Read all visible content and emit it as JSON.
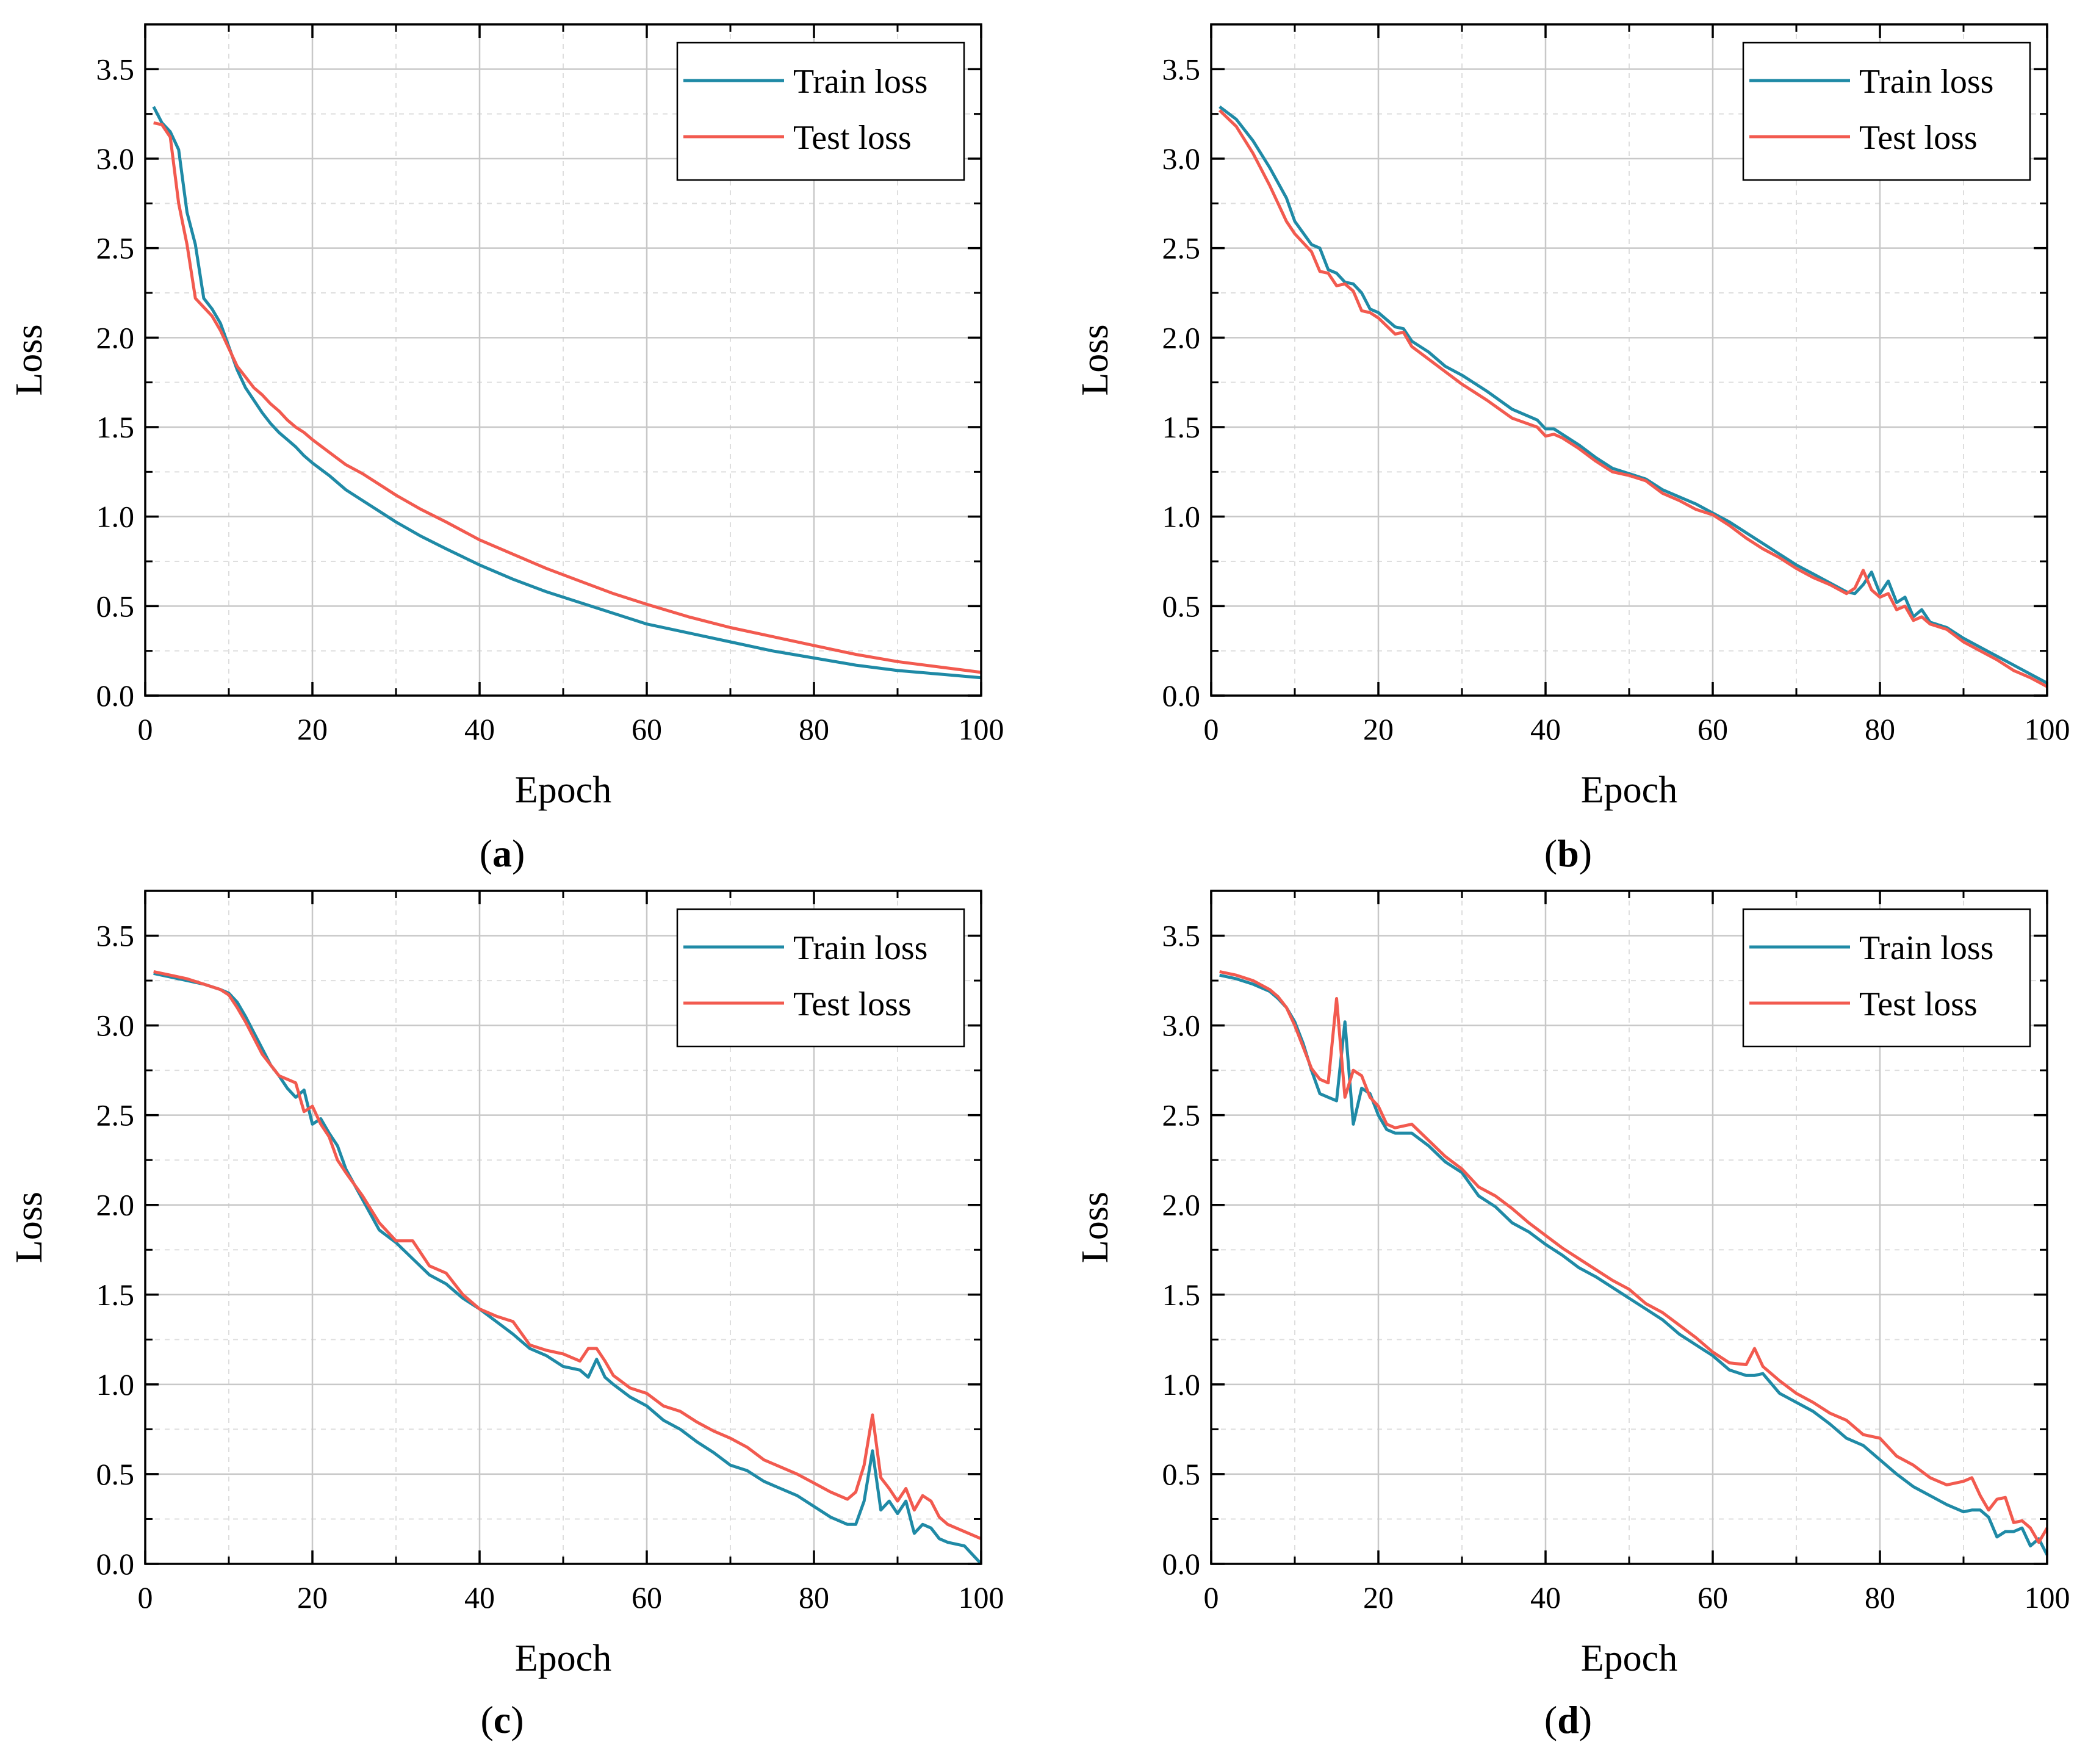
{
  "colors": {
    "train": "#1f8aa6",
    "test": "#f25a4f",
    "grid": "#c8c8c8",
    "frame": "#000000"
  },
  "chart_data": [
    {
      "type": "line",
      "caption_letter": "a",
      "xlabel": "Epoch",
      "ylabel": "Loss",
      "xlim": [
        0,
        100
      ],
      "ylim": [
        0,
        3.75
      ],
      "xticks": [
        0,
        20,
        40,
        60,
        80,
        100
      ],
      "yticks": [
        0.0,
        0.5,
        1.0,
        1.5,
        2.0,
        2.5,
        3.0,
        3.5
      ],
      "xtick_labels": [
        "0",
        "20",
        "40",
        "60",
        "80",
        "100"
      ],
      "ytick_labels": [
        "0.0",
        "0.5",
        "1.0",
        "1.5",
        "2.0",
        "2.5",
        "3.0",
        "3.5"
      ],
      "legend_position": "top-right",
      "series": [
        {
          "name": "Train loss",
          "color": "#1f8aa6",
          "x": [
            1,
            2,
            3,
            4,
            5,
            6,
            7,
            8,
            9,
            10,
            11,
            12,
            13,
            14,
            15,
            16,
            17,
            18,
            19,
            20,
            22,
            24,
            26,
            28,
            30,
            33,
            36,
            40,
            44,
            48,
            52,
            56,
            60,
            65,
            70,
            75,
            80,
            85,
            90,
            95,
            100
          ],
          "y": [
            3.29,
            3.2,
            3.15,
            3.05,
            2.7,
            2.52,
            2.22,
            2.16,
            2.08,
            1.95,
            1.82,
            1.72,
            1.65,
            1.58,
            1.52,
            1.47,
            1.43,
            1.39,
            1.34,
            1.3,
            1.23,
            1.15,
            1.09,
            1.03,
            0.97,
            0.89,
            0.82,
            0.73,
            0.65,
            0.58,
            0.52,
            0.46,
            0.4,
            0.35,
            0.3,
            0.25,
            0.21,
            0.17,
            0.14,
            0.12,
            0.1
          ]
        },
        {
          "name": "Test loss",
          "color": "#f25a4f",
          "x": [
            1,
            2,
            3,
            4,
            5,
            6,
            7,
            8,
            9,
            10,
            11,
            12,
            13,
            14,
            15,
            16,
            17,
            18,
            19,
            20,
            22,
            24,
            26,
            28,
            30,
            33,
            36,
            40,
            44,
            48,
            52,
            56,
            60,
            65,
            70,
            75,
            80,
            85,
            90,
            95,
            100
          ],
          "y": [
            3.2,
            3.19,
            3.12,
            2.75,
            2.52,
            2.22,
            2.17,
            2.12,
            2.04,
            1.94,
            1.84,
            1.78,
            1.72,
            1.68,
            1.63,
            1.59,
            1.54,
            1.5,
            1.47,
            1.43,
            1.36,
            1.29,
            1.24,
            1.18,
            1.12,
            1.04,
            0.97,
            0.87,
            0.79,
            0.71,
            0.64,
            0.57,
            0.51,
            0.44,
            0.38,
            0.33,
            0.28,
            0.23,
            0.19,
            0.16,
            0.13
          ]
        }
      ]
    },
    {
      "type": "line",
      "caption_letter": "b",
      "xlabel": "Epoch",
      "ylabel": "Loss",
      "xlim": [
        0,
        100
      ],
      "ylim": [
        0,
        3.75
      ],
      "xticks": [
        0,
        20,
        40,
        60,
        80,
        100
      ],
      "yticks": [
        0.0,
        0.5,
        1.0,
        1.5,
        2.0,
        2.5,
        3.0,
        3.5
      ],
      "xtick_labels": [
        "0",
        "20",
        "40",
        "60",
        "80",
        "100"
      ],
      "ytick_labels": [
        "0.0",
        "0.5",
        "1.0",
        "1.5",
        "2.0",
        "2.5",
        "3.0",
        "3.5"
      ],
      "legend_position": "top-right",
      "series": [
        {
          "name": "Train loss",
          "color": "#1f8aa6",
          "x": [
            1,
            3,
            5,
            7,
            9,
            10,
            12,
            13,
            14,
            15,
            16,
            17,
            18,
            19,
            20,
            22,
            23,
            24,
            26,
            28,
            30,
            33,
            36,
            39,
            40,
            41,
            42,
            44,
            46,
            48,
            50,
            52,
            54,
            56,
            58,
            60,
            62,
            64,
            66,
            68,
            70,
            72,
            74,
            76,
            77,
            78,
            79,
            80,
            81,
            82,
            83,
            84,
            85,
            86,
            88,
            90,
            92,
            94,
            96,
            98,
            100
          ],
          "y": [
            3.29,
            3.22,
            3.1,
            2.95,
            2.78,
            2.65,
            2.52,
            2.5,
            2.38,
            2.36,
            2.31,
            2.3,
            2.25,
            2.16,
            2.14,
            2.06,
            2.05,
            1.98,
            1.92,
            1.84,
            1.79,
            1.7,
            1.6,
            1.54,
            1.49,
            1.49,
            1.46,
            1.4,
            1.33,
            1.27,
            1.24,
            1.21,
            1.15,
            1.11,
            1.07,
            1.02,
            0.97,
            0.91,
            0.85,
            0.79,
            0.73,
            0.68,
            0.63,
            0.58,
            0.57,
            0.62,
            0.69,
            0.57,
            0.64,
            0.52,
            0.55,
            0.44,
            0.48,
            0.41,
            0.38,
            0.32,
            0.27,
            0.22,
            0.17,
            0.12,
            0.07
          ]
        },
        {
          "name": "Test loss",
          "color": "#f25a4f",
          "x": [
            1,
            3,
            5,
            7,
            9,
            10,
            12,
            13,
            14,
            15,
            16,
            17,
            18,
            19,
            20,
            22,
            23,
            24,
            26,
            28,
            30,
            33,
            36,
            39,
            40,
            41,
            42,
            44,
            46,
            48,
            50,
            52,
            54,
            56,
            58,
            60,
            62,
            64,
            66,
            68,
            70,
            72,
            74,
            76,
            77,
            78,
            79,
            80,
            81,
            82,
            83,
            84,
            85,
            86,
            88,
            90,
            92,
            94,
            96,
            98,
            100
          ],
          "y": [
            3.27,
            3.18,
            3.03,
            2.85,
            2.65,
            2.58,
            2.48,
            2.37,
            2.36,
            2.29,
            2.3,
            2.26,
            2.15,
            2.14,
            2.11,
            2.02,
            2.03,
            1.95,
            1.88,
            1.81,
            1.74,
            1.65,
            1.55,
            1.5,
            1.45,
            1.46,
            1.44,
            1.38,
            1.31,
            1.25,
            1.23,
            1.2,
            1.13,
            1.09,
            1.04,
            1.01,
            0.95,
            0.88,
            0.82,
            0.77,
            0.71,
            0.66,
            0.62,
            0.57,
            0.6,
            0.7,
            0.59,
            0.55,
            0.57,
            0.48,
            0.5,
            0.42,
            0.44,
            0.4,
            0.37,
            0.3,
            0.25,
            0.2,
            0.14,
            0.1,
            0.05
          ]
        }
      ]
    },
    {
      "type": "line",
      "caption_letter": "c",
      "xlabel": "Epoch",
      "ylabel": "Loss",
      "xlim": [
        0,
        100
      ],
      "ylim": [
        0,
        3.75
      ],
      "xticks": [
        0,
        20,
        40,
        60,
        80,
        100
      ],
      "yticks": [
        0.0,
        0.5,
        1.0,
        1.5,
        2.0,
        2.5,
        3.0,
        3.5
      ],
      "xtick_labels": [
        "0",
        "20",
        "40",
        "60",
        "80",
        "100"
      ],
      "ytick_labels": [
        "0.0",
        "0.5",
        "1.0",
        "1.5",
        "2.0",
        "2.5",
        "3.0",
        "3.5"
      ],
      "legend_position": "top-right",
      "series": [
        {
          "name": "Train loss",
          "color": "#1f8aa6",
          "x": [
            1,
            3,
            5,
            7,
            9,
            10,
            11,
            12,
            13,
            14,
            15,
            16,
            17,
            18,
            19,
            20,
            21,
            22,
            23,
            24,
            26,
            28,
            30,
            32,
            34,
            36,
            38,
            40,
            42,
            44,
            46,
            48,
            50,
            52,
            53,
            54,
            55,
            56,
            58,
            60,
            62,
            64,
            66,
            68,
            70,
            72,
            74,
            76,
            78,
            80,
            82,
            84,
            85,
            86,
            87,
            88,
            89,
            90,
            91,
            92,
            93,
            94,
            95,
            96,
            98,
            100
          ],
          "y": [
            3.29,
            3.27,
            3.25,
            3.23,
            3.2,
            3.18,
            3.13,
            3.05,
            2.96,
            2.87,
            2.78,
            2.72,
            2.65,
            2.6,
            2.64,
            2.45,
            2.48,
            2.4,
            2.33,
            2.2,
            2.03,
            1.86,
            1.79,
            1.7,
            1.61,
            1.56,
            1.48,
            1.42,
            1.35,
            1.28,
            1.2,
            1.16,
            1.1,
            1.08,
            1.04,
            1.14,
            1.04,
            1.0,
            0.93,
            0.88,
            0.8,
            0.75,
            0.68,
            0.62,
            0.55,
            0.52,
            0.46,
            0.42,
            0.38,
            0.32,
            0.26,
            0.22,
            0.22,
            0.35,
            0.63,
            0.3,
            0.35,
            0.28,
            0.35,
            0.17,
            0.22,
            0.2,
            0.14,
            0.12,
            0.1,
            0.0
          ]
        },
        {
          "name": "Test loss",
          "color": "#f25a4f",
          "x": [
            1,
            3,
            5,
            7,
            9,
            10,
            11,
            12,
            13,
            14,
            15,
            16,
            17,
            18,
            19,
            20,
            21,
            22,
            23,
            24,
            26,
            28,
            30,
            32,
            34,
            36,
            38,
            40,
            42,
            44,
            46,
            48,
            50,
            52,
            53,
            54,
            55,
            56,
            58,
            60,
            62,
            64,
            66,
            68,
            70,
            72,
            74,
            76,
            78,
            80,
            82,
            84,
            85,
            86,
            87,
            88,
            89,
            90,
            91,
            92,
            93,
            94,
            95,
            96,
            98,
            100
          ],
          "y": [
            3.3,
            3.28,
            3.26,
            3.23,
            3.2,
            3.17,
            3.1,
            3.02,
            2.93,
            2.84,
            2.78,
            2.72,
            2.7,
            2.68,
            2.52,
            2.55,
            2.45,
            2.38,
            2.25,
            2.18,
            2.05,
            1.9,
            1.8,
            1.8,
            1.66,
            1.62,
            1.5,
            1.42,
            1.38,
            1.35,
            1.22,
            1.19,
            1.17,
            1.13,
            1.2,
            1.2,
            1.13,
            1.05,
            0.98,
            0.95,
            0.88,
            0.85,
            0.79,
            0.74,
            0.7,
            0.65,
            0.58,
            0.54,
            0.5,
            0.45,
            0.4,
            0.36,
            0.4,
            0.55,
            0.83,
            0.48,
            0.42,
            0.35,
            0.42,
            0.3,
            0.38,
            0.35,
            0.26,
            0.22,
            0.18,
            0.14
          ]
        }
      ]
    },
    {
      "type": "line",
      "caption_letter": "d",
      "xlabel": "Epoch",
      "ylabel": "Loss",
      "xlim": [
        0,
        100
      ],
      "ylim": [
        0,
        3.75
      ],
      "xticks": [
        0,
        20,
        40,
        60,
        80,
        100
      ],
      "yticks": [
        0.0,
        0.5,
        1.0,
        1.5,
        2.0,
        2.5,
        3.0,
        3.5
      ],
      "xtick_labels": [
        "0",
        "20",
        "40",
        "60",
        "80",
        "100"
      ],
      "ytick_labels": [
        "0.0",
        "0.5",
        "1.0",
        "1.5",
        "2.0",
        "2.5",
        "3.0",
        "3.5"
      ],
      "legend_position": "top-right",
      "series": [
        {
          "name": "Train loss",
          "color": "#1f8aa6",
          "x": [
            1,
            3,
            5,
            7,
            8,
            9,
            10,
            11,
            12,
            13,
            14,
            15,
            16,
            17,
            18,
            19,
            20,
            21,
            22,
            24,
            26,
            28,
            30,
            32,
            34,
            36,
            38,
            40,
            42,
            44,
            46,
            48,
            50,
            52,
            54,
            56,
            58,
            60,
            62,
            64,
            65,
            66,
            68,
            70,
            72,
            74,
            76,
            78,
            80,
            82,
            84,
            86,
            88,
            90,
            91,
            92,
            93,
            94,
            95,
            96,
            97,
            98,
            99,
            100
          ],
          "y": [
            3.28,
            3.26,
            3.23,
            3.19,
            3.15,
            3.1,
            3.02,
            2.9,
            2.75,
            2.62,
            2.6,
            2.58,
            3.02,
            2.45,
            2.65,
            2.62,
            2.5,
            2.42,
            2.4,
            2.4,
            2.33,
            2.24,
            2.18,
            2.05,
            1.99,
            1.9,
            1.85,
            1.78,
            1.72,
            1.65,
            1.6,
            1.54,
            1.48,
            1.42,
            1.36,
            1.28,
            1.22,
            1.16,
            1.08,
            1.05,
            1.05,
            1.06,
            0.95,
            0.9,
            0.85,
            0.78,
            0.7,
            0.66,
            0.58,
            0.5,
            0.43,
            0.38,
            0.33,
            0.29,
            0.3,
            0.3,
            0.26,
            0.15,
            0.18,
            0.18,
            0.2,
            0.1,
            0.14,
            0.05
          ]
        },
        {
          "name": "Test loss",
          "color": "#f25a4f",
          "x": [
            1,
            3,
            5,
            7,
            8,
            9,
            10,
            11,
            12,
            13,
            14,
            15,
            16,
            17,
            18,
            19,
            20,
            21,
            22,
            24,
            26,
            28,
            30,
            32,
            34,
            36,
            38,
            40,
            42,
            44,
            46,
            48,
            50,
            52,
            54,
            56,
            58,
            60,
            62,
            64,
            65,
            66,
            68,
            70,
            72,
            74,
            76,
            78,
            80,
            82,
            84,
            86,
            88,
            90,
            91,
            92,
            93,
            94,
            95,
            96,
            97,
            98,
            99,
            100
          ],
          "y": [
            3.3,
            3.28,
            3.25,
            3.2,
            3.16,
            3.1,
            3.0,
            2.88,
            2.76,
            2.7,
            2.68,
            3.15,
            2.6,
            2.75,
            2.72,
            2.6,
            2.55,
            2.45,
            2.43,
            2.45,
            2.36,
            2.27,
            2.2,
            2.1,
            2.05,
            1.98,
            1.9,
            1.83,
            1.76,
            1.7,
            1.64,
            1.58,
            1.53,
            1.45,
            1.4,
            1.33,
            1.26,
            1.18,
            1.12,
            1.11,
            1.2,
            1.1,
            1.02,
            0.95,
            0.9,
            0.84,
            0.8,
            0.72,
            0.7,
            0.6,
            0.55,
            0.48,
            0.44,
            0.46,
            0.48,
            0.38,
            0.3,
            0.36,
            0.37,
            0.23,
            0.24,
            0.2,
            0.12,
            0.2
          ]
        }
      ]
    }
  ]
}
